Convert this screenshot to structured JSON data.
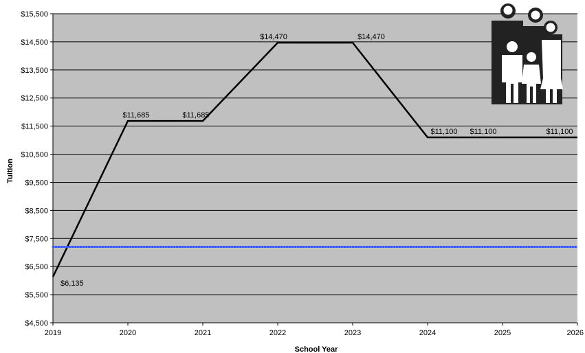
{
  "chart_data": {
    "type": "line",
    "xlabel": "School Year",
    "ylabel": "Tuition",
    "xlim": [
      2019,
      2026
    ],
    "ylim": [
      4500,
      15500
    ],
    "x_ticks": [
      "2019",
      "2020",
      "2021",
      "2022",
      "2023",
      "2024",
      "2025",
      "2026"
    ],
    "y_ticks": [
      "$4,500",
      "$5,500",
      "$6,500",
      "$7,500",
      "$8,500",
      "$9,500",
      "$10,500",
      "$11,500",
      "$12,500",
      "$13,500",
      "$14,500",
      "$15,500"
    ],
    "grid": true,
    "series": [
      {
        "style": "solid",
        "color": "#000000",
        "x": [
          2019,
          2020,
          2021,
          2022,
          2023,
          2024,
          2025,
          2026
        ],
        "y": [
          6135,
          11685,
          11685,
          14470,
          14470,
          11100,
          11100,
          11100
        ],
        "labels": [
          "$6,135",
          "$11,685",
          "$11,685",
          "$14,470",
          "$14,470",
          "$11,100",
          "$11,100",
          "$11,100"
        ]
      },
      {
        "style": "dotted",
        "color": "#3355ff",
        "x": [
          2019,
          2026
        ],
        "y": [
          7200,
          7200
        ]
      }
    ],
    "plot_background": "#c0c0c0",
    "illustration": "family-icon"
  }
}
